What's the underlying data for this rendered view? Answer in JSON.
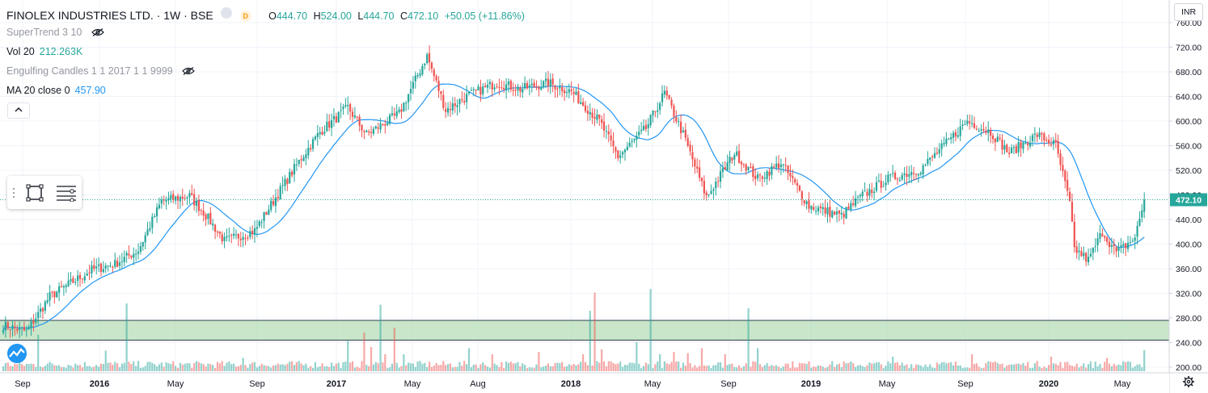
{
  "header": {
    "symbol": "FINOLEX INDUSTRIES LTD. · 1W · BSE",
    "badge1": "",
    "badge2": "D",
    "open_label": "O",
    "open": "444.70",
    "high_label": "H",
    "high": "524.00",
    "low_label": "L",
    "low": "444.70",
    "close_label": "C",
    "close": "472.10",
    "change": "+50.05 (+11.86%)"
  },
  "indicators": [
    {
      "name": "SuperTrend 3 10",
      "value": "",
      "hidden": true
    },
    {
      "name": "Vol 20",
      "value": "212.263K",
      "hidden": false
    },
    {
      "name": "Engulfing Candles 1 1 2017 1 1 9999",
      "value": "",
      "hidden": true
    },
    {
      "name": "MA 20 close 0",
      "value": "457.90",
      "hidden": false
    }
  ],
  "collapse_icon": "chevron-up-icon",
  "currency": "INR",
  "colors": {
    "up": "#26a69a",
    "down": "#ef5350",
    "ma": "#2196f3",
    "zone": "#a5d6a7",
    "price_tag": "#26a69a"
  },
  "chart_data": {
    "type": "candlestick",
    "interval": "1W",
    "y_axis": {
      "ticks": [
        200,
        240,
        280,
        320,
        360,
        400,
        440,
        480,
        520,
        560,
        600,
        640,
        680,
        720,
        760
      ],
      "range": [
        195,
        780
      ],
      "side": "right"
    },
    "x_axis": {
      "labels": [
        "Sep",
        "2016",
        "May",
        "Sep",
        "2017",
        "May",
        "Aug",
        "2018",
        "May",
        "Sep",
        "2019",
        "May",
        "Sep",
        "2020",
        "May"
      ]
    },
    "last_price": 472.1,
    "last_price_label": "472.10",
    "hidden_axis_label": "480.00",
    "support_zone": {
      "low": 244,
      "high": 276
    },
    "price_keyframes": [
      [
        0,
        268
      ],
      [
        10,
        258
      ],
      [
        20,
        315
      ],
      [
        38,
        358
      ],
      [
        48,
        368
      ],
      [
        58,
        390
      ],
      [
        68,
        470
      ],
      [
        80,
        478
      ],
      [
        86,
        452
      ],
      [
        95,
        405
      ],
      [
        108,
        422
      ],
      [
        118,
        482
      ],
      [
        128,
        540
      ],
      [
        136,
        582
      ],
      [
        148,
        622
      ],
      [
        156,
        578
      ],
      [
        170,
        612
      ],
      [
        182,
        706
      ],
      [
        190,
        618
      ],
      [
        200,
        642
      ],
      [
        212,
        662
      ],
      [
        222,
        652
      ],
      [
        234,
        662
      ],
      [
        244,
        648
      ],
      [
        256,
        600
      ],
      [
        264,
        542
      ],
      [
        276,
        588
      ],
      [
        284,
        646
      ],
      [
        292,
        578
      ],
      [
        302,
        476
      ],
      [
        314,
        548
      ],
      [
        324,
        506
      ],
      [
        334,
        532
      ],
      [
        346,
        462
      ],
      [
        360,
        446
      ],
      [
        368,
        476
      ],
      [
        380,
        506
      ],
      [
        394,
        522
      ],
      [
        404,
        560
      ],
      [
        414,
        600
      ],
      [
        424,
        582
      ],
      [
        432,
        548
      ],
      [
        444,
        578
      ],
      [
        452,
        560
      ],
      [
        458,
        466
      ],
      [
        460,
        392
      ],
      [
        466,
        374
      ],
      [
        472,
        420
      ],
      [
        478,
        386
      ],
      [
        486,
        410
      ],
      [
        490,
        472
      ]
    ],
    "volume_scale": {
      "max": 800000
    },
    "volume_spikes": [
      [
        15,
        300000
      ],
      [
        44,
        170000
      ],
      [
        53,
        560000
      ],
      [
        103,
        110000
      ],
      [
        148,
        250000
      ],
      [
        155,
        320000
      ],
      [
        158,
        200000
      ],
      [
        162,
        550000
      ],
      [
        164,
        140000
      ],
      [
        168,
        360000
      ],
      [
        172,
        140000
      ],
      [
        200,
        190000
      ],
      [
        210,
        140000
      ],
      [
        230,
        160000
      ],
      [
        249,
        140000
      ],
      [
        252,
        500000
      ],
      [
        254,
        650000
      ],
      [
        257,
        180000
      ],
      [
        272,
        240000
      ],
      [
        278,
        680000
      ],
      [
        282,
        140000
      ],
      [
        288,
        160000
      ],
      [
        294,
        150000
      ],
      [
        300,
        190000
      ],
      [
        310,
        140000
      ],
      [
        320,
        520000
      ],
      [
        324,
        190000
      ],
      [
        382,
        120000
      ],
      [
        416,
        140000
      ],
      [
        450,
        120000
      ],
      [
        474,
        110000
      ],
      [
        490,
        175000
      ]
    ]
  }
}
